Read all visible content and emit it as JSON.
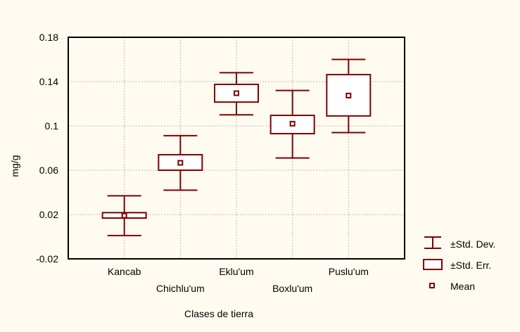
{
  "chart_data": {
    "type": "box",
    "title": "",
    "xlabel": "Clases de tierra",
    "ylabel": "mg/g",
    "ylim": [
      -0.02,
      0.18
    ],
    "xlim": [
      0,
      6
    ],
    "yticks": [
      "-0.02",
      "0.02",
      "0.06",
      "0.1",
      "0.14",
      "0.18"
    ],
    "ytick_values": [
      -0.02,
      0.02,
      0.06,
      0.1,
      0.14,
      0.18
    ],
    "grid": true,
    "legend_position": "right",
    "colors": {
      "series": "#800000",
      "box_fill": "#ffffff",
      "background": "#fffbf0",
      "grid": "#b8b8b8"
    },
    "categories": [
      "Kancab",
      "Chichlu'um",
      "Eklu'um",
      "Boxlu'um",
      "Puslu'um"
    ],
    "series": [
      {
        "category": "Kancab",
        "mean": 0.019,
        "se_low": 0.0168,
        "se_high": 0.0217,
        "sd_low": 0.001,
        "sd_high": 0.0369
      },
      {
        "category": "Chichlu'um",
        "mean": 0.0667,
        "se_low": 0.06,
        "se_high": 0.074,
        "sd_low": 0.042,
        "sd_high": 0.0912
      },
      {
        "category": "Eklu'um",
        "mean": 0.1295,
        "se_low": 0.1215,
        "se_high": 0.1375,
        "sd_low": 0.11,
        "sd_high": 0.148
      },
      {
        "category": "Boxlu'um",
        "mean": 0.102,
        "se_low": 0.093,
        "se_high": 0.1095,
        "sd_low": 0.071,
        "sd_high": 0.132
      },
      {
        "category": "Puslu'um",
        "mean": 0.1274,
        "se_low": 0.109,
        "se_high": 0.1463,
        "sd_low": 0.094,
        "sd_high": 0.16
      }
    ],
    "legend": {
      "sd": "±Std. Dev.",
      "se": "±Std. Err.",
      "mean": "Mean"
    }
  }
}
